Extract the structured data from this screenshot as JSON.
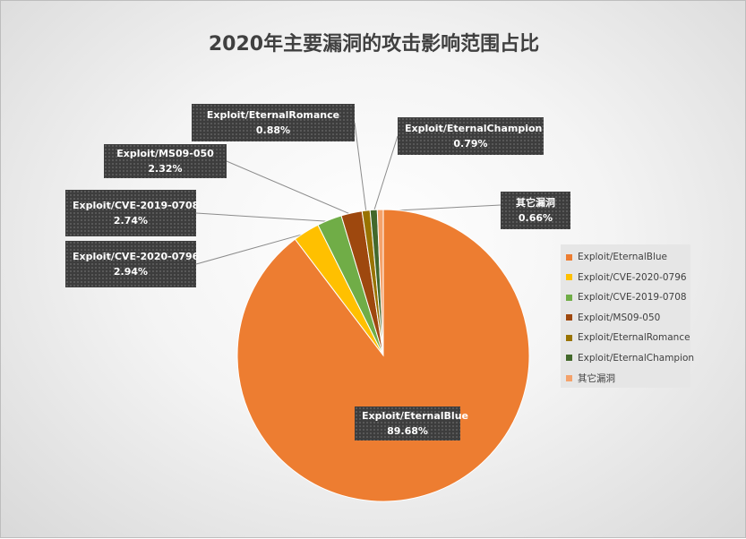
{
  "chart_data": {
    "type": "pie",
    "title": "2020年主要漏洞的攻击影响范围占比",
    "legend_position": "right",
    "slices": [
      {
        "label": "Exploit/EternalBlue",
        "value": 89.68,
        "value_label": "89.68%",
        "color": "#ED7D31"
      },
      {
        "label": "Exploit/CVE-2020-0796",
        "value": 2.94,
        "value_label": "2.94%",
        "color": "#FFC000"
      },
      {
        "label": "Exploit/CVE-2019-0708",
        "value": 2.74,
        "value_label": "2.74%",
        "color": "#70AD47"
      },
      {
        "label": "Exploit/MS09-050",
        "value": 2.32,
        "value_label": "2.32%",
        "color": "#9E480E"
      },
      {
        "label": "Exploit/EternalRomance",
        "value": 0.88,
        "value_label": "0.88%",
        "color": "#997300"
      },
      {
        "label": "Exploit/EternalChampion",
        "value": 0.79,
        "value_label": "0.79%",
        "color": "#43682B"
      },
      {
        "label": "其它漏洞",
        "value": 0.66,
        "value_label": "0.66%",
        "color": "#F4A26B"
      }
    ]
  }
}
